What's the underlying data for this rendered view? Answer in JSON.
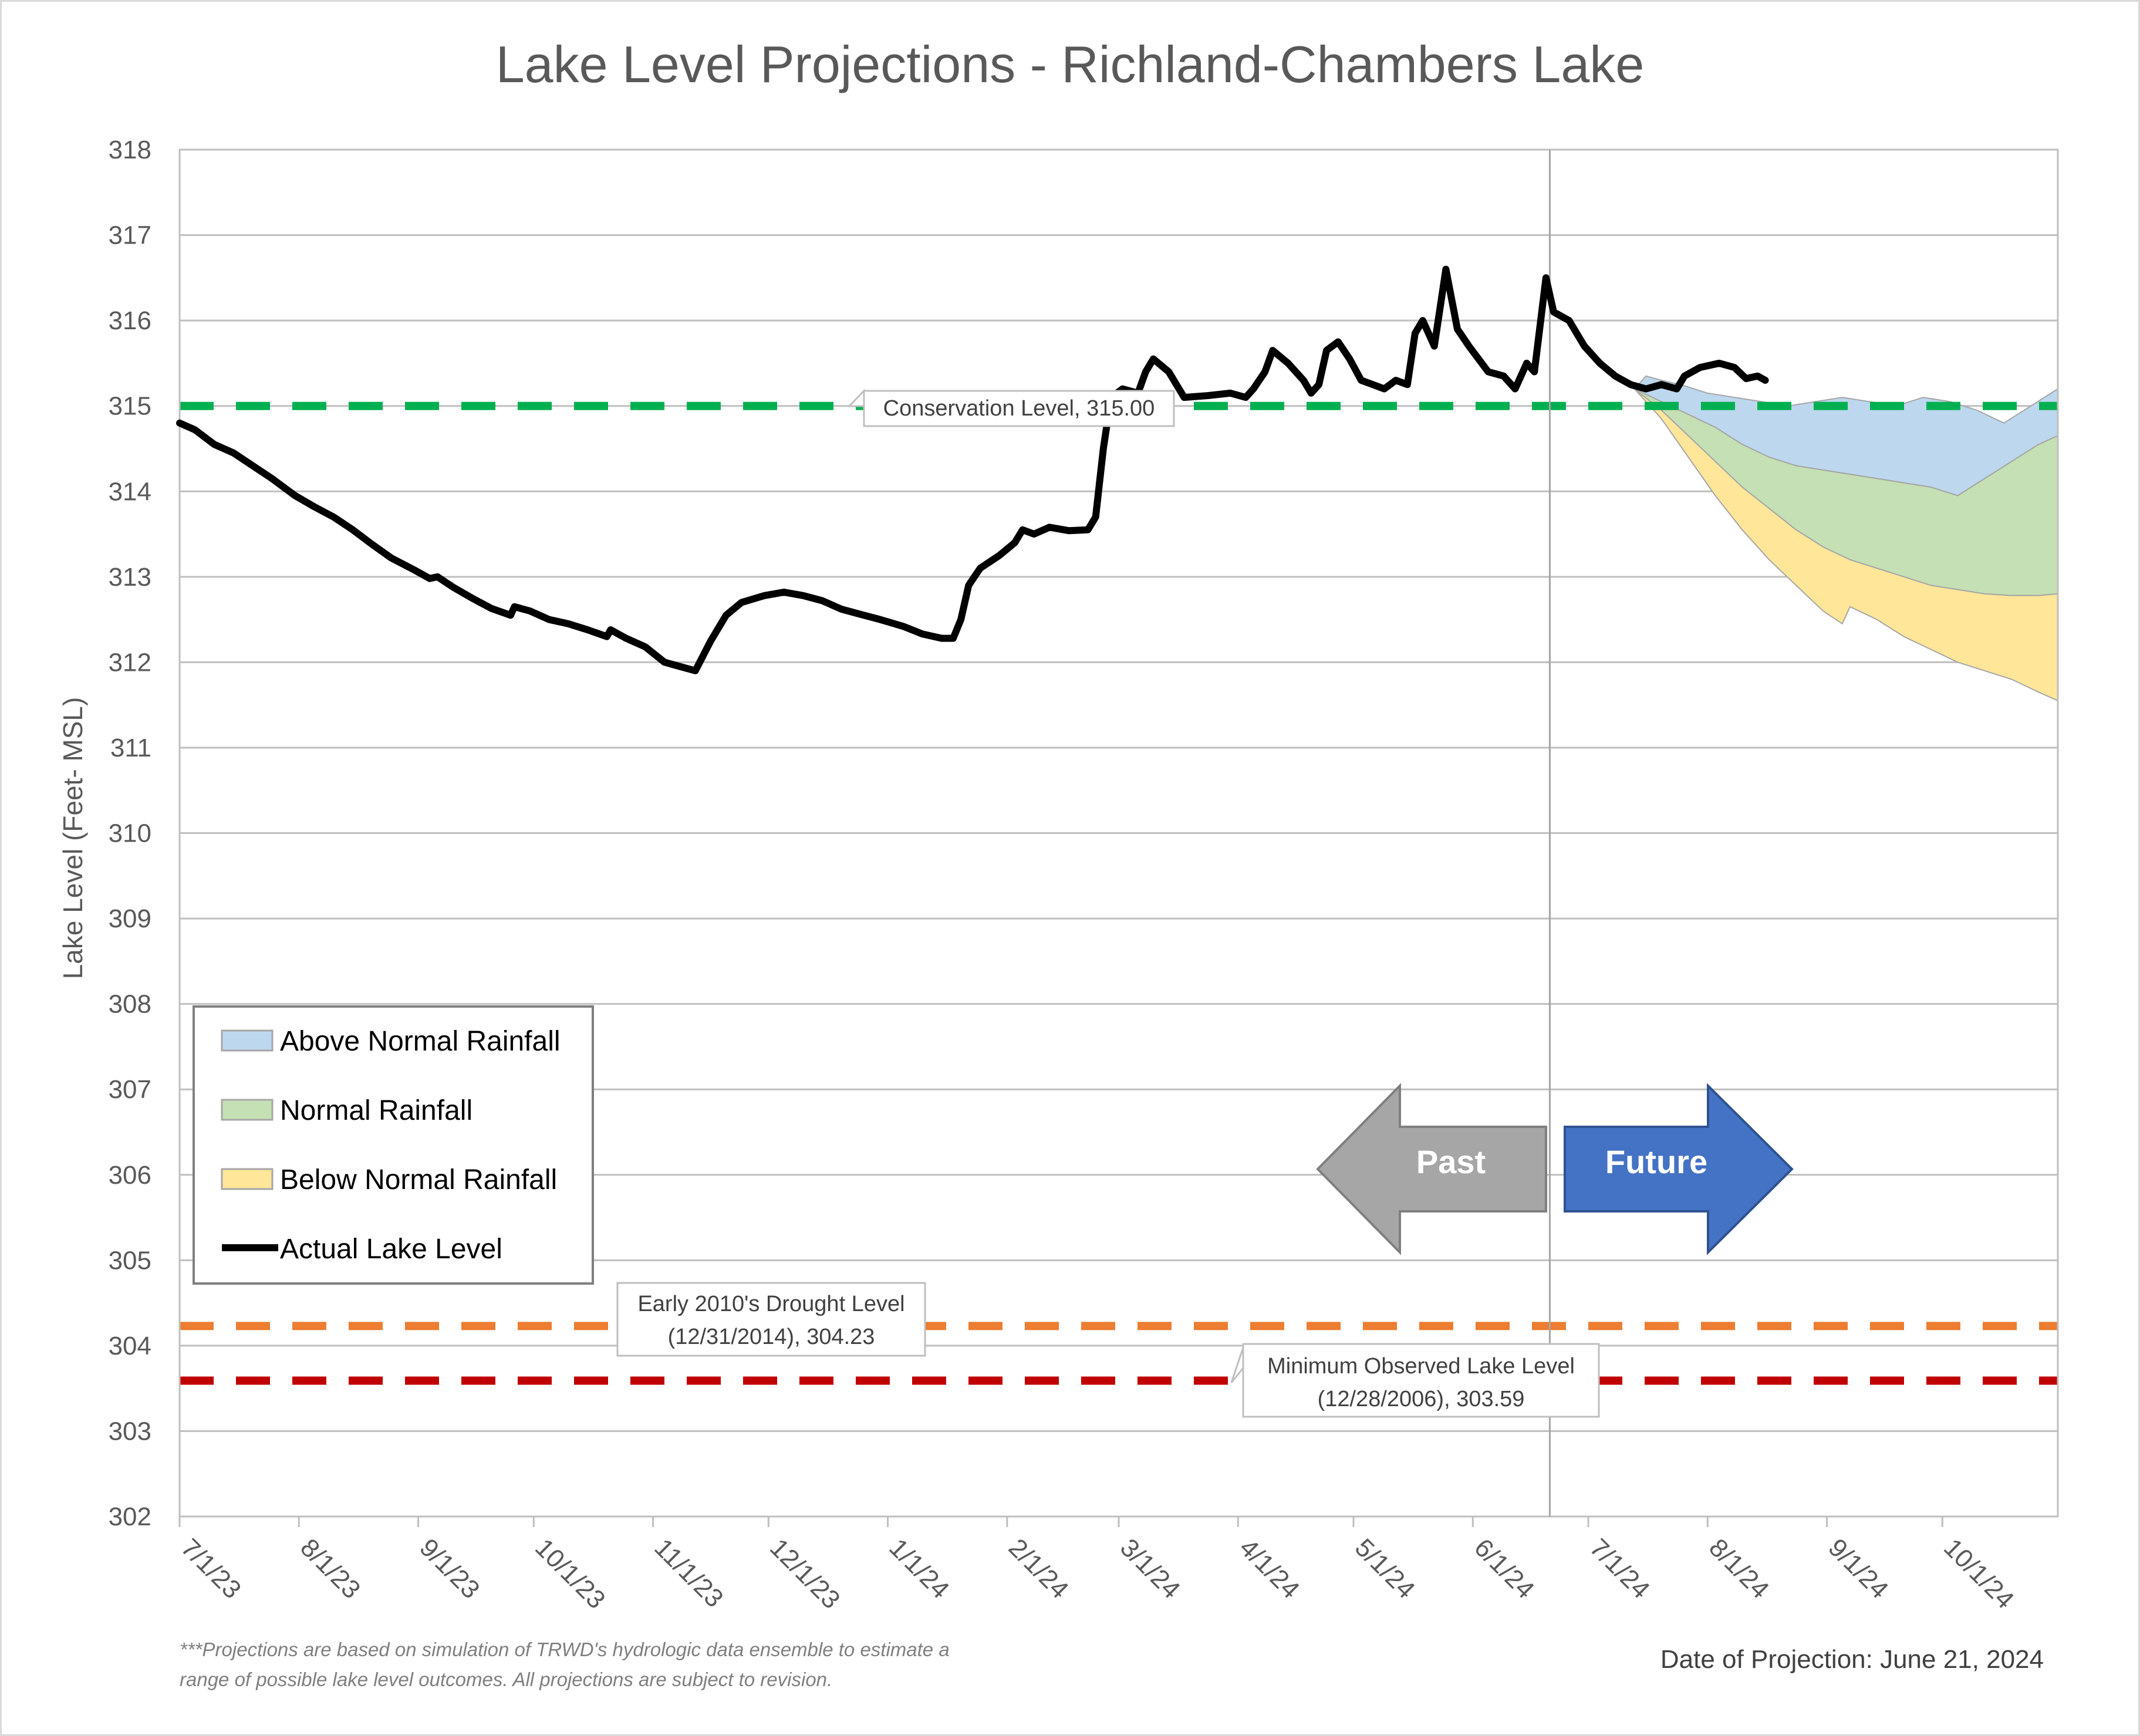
{
  "chart_data": {
    "type": "area",
    "title": "Lake Level Projections - Richland-Chambers Lake",
    "ylabel": "Lake Level (Feet- MSL)",
    "xlabel": "",
    "ylim": [
      302,
      318
    ],
    "yticks": [
      "302",
      "303",
      "304",
      "305",
      "306",
      "307",
      "308",
      "309",
      "310",
      "311",
      "312",
      "313",
      "314",
      "315",
      "316",
      "317",
      "318"
    ],
    "x_range": [
      "2023-07-01",
      "2024-10-31"
    ],
    "x_ticks": [
      {
        "date": "2023-07-01",
        "label": "7/1/23"
      },
      {
        "date": "2023-08-01",
        "label": "8/1/23"
      },
      {
        "date": "2023-09-01",
        "label": "9/1/23"
      },
      {
        "date": "2023-10-01",
        "label": "10/1/23"
      },
      {
        "date": "2023-11-01",
        "label": "11/1/23"
      },
      {
        "date": "2023-12-01",
        "label": "12/1/23"
      },
      {
        "date": "2024-01-01",
        "label": "1/1/24"
      },
      {
        "date": "2024-02-01",
        "label": "2/1/24"
      },
      {
        "date": "2024-03-01",
        "label": "3/1/24"
      },
      {
        "date": "2024-04-01",
        "label": "4/1/24"
      },
      {
        "date": "2024-05-01",
        "label": "5/1/24"
      },
      {
        "date": "2024-06-01",
        "label": "6/1/24"
      },
      {
        "date": "2024-07-01",
        "label": "7/1/24"
      },
      {
        "date": "2024-08-01",
        "label": "8/1/24"
      },
      {
        "date": "2024-09-01",
        "label": "9/1/24"
      },
      {
        "date": "2024-10-01",
        "label": "10/1/24"
      }
    ],
    "grid": "horizontal",
    "projection_date": "2024-06-21",
    "reference_lines": [
      {
        "name": "Conservation Level",
        "value": 315.0,
        "color": "#00b050",
        "label": "Conservation Level, 315.00"
      },
      {
        "name": "Early 2010's Drought Level",
        "value": 304.23,
        "color": "#ed7d31",
        "label_line1": "Early 2010's Drought Level",
        "label_line2": "(12/31/2014), 304.23"
      },
      {
        "name": "Minimum Observed Lake Level",
        "value": 303.59,
        "color": "#c00000",
        "label_line1": "Minimum Observed Lake Level",
        "label_line2": "(12/28/2006), 303.59"
      }
    ],
    "series": [
      {
        "name": "Actual Lake Level",
        "color": "#000000",
        "points": [
          [
            "2023-07-01",
            314.8
          ],
          [
            "2023-07-05",
            314.72
          ],
          [
            "2023-07-10",
            314.55
          ],
          [
            "2023-07-15",
            314.45
          ],
          [
            "2023-07-20",
            314.3
          ],
          [
            "2023-07-25",
            314.15
          ],
          [
            "2023-07-31",
            313.95
          ],
          [
            "2023-08-05",
            313.82
          ],
          [
            "2023-08-10",
            313.7
          ],
          [
            "2023-08-15",
            313.55
          ],
          [
            "2023-08-20",
            313.38
          ],
          [
            "2023-08-25",
            313.22
          ],
          [
            "2023-08-31",
            313.08
          ],
          [
            "2023-09-04",
            312.98
          ],
          [
            "2023-09-06",
            313.0
          ],
          [
            "2023-09-10",
            312.88
          ],
          [
            "2023-09-15",
            312.75
          ],
          [
            "2023-09-20",
            312.63
          ],
          [
            "2023-09-25",
            312.55
          ],
          [
            "2023-09-26",
            312.65
          ],
          [
            "2023-09-30",
            312.6
          ],
          [
            "2023-10-05",
            312.5
          ],
          [
            "2023-10-10",
            312.45
          ],
          [
            "2023-10-15",
            312.38
          ],
          [
            "2023-10-20",
            312.3
          ],
          [
            "2023-10-21",
            312.38
          ],
          [
            "2023-10-25",
            312.28
          ],
          [
            "2023-10-30",
            312.18
          ],
          [
            "2023-11-04",
            312.0
          ],
          [
            "2023-11-08",
            311.95
          ],
          [
            "2023-11-12",
            311.9
          ],
          [
            "2023-11-16",
            312.25
          ],
          [
            "2023-11-20",
            312.55
          ],
          [
            "2023-11-24",
            312.7
          ],
          [
            "2023-11-30",
            312.78
          ],
          [
            "2023-12-05",
            312.82
          ],
          [
            "2023-12-10",
            312.78
          ],
          [
            "2023-12-15",
            312.72
          ],
          [
            "2023-12-20",
            312.62
          ],
          [
            "2023-12-25",
            312.56
          ],
          [
            "2023-12-30",
            312.5
          ],
          [
            "2024-01-05",
            312.42
          ],
          [
            "2024-01-10",
            312.33
          ],
          [
            "2024-01-15",
            312.28
          ],
          [
            "2024-01-18",
            312.28
          ],
          [
            "2024-01-20",
            312.5
          ],
          [
            "2024-01-22",
            312.9
          ],
          [
            "2024-01-25",
            313.1
          ],
          [
            "2024-01-30",
            313.25
          ],
          [
            "2024-02-03",
            313.4
          ],
          [
            "2024-02-05",
            313.55
          ],
          [
            "2024-02-08",
            313.5
          ],
          [
            "2024-02-12",
            313.58
          ],
          [
            "2024-02-17",
            313.54
          ],
          [
            "2024-02-22",
            313.55
          ],
          [
            "2024-02-24",
            313.7
          ],
          [
            "2024-02-26",
            314.5
          ],
          [
            "2024-02-28",
            315.1
          ],
          [
            "2024-03-02",
            315.2
          ],
          [
            "2024-03-06",
            315.15
          ],
          [
            "2024-03-08",
            315.4
          ],
          [
            "2024-03-10",
            315.55
          ],
          [
            "2024-03-14",
            315.4
          ],
          [
            "2024-03-18",
            315.1
          ],
          [
            "2024-03-24",
            315.12
          ],
          [
            "2024-03-30",
            315.15
          ],
          [
            "2024-04-03",
            315.1
          ],
          [
            "2024-04-05",
            315.2
          ],
          [
            "2024-04-08",
            315.4
          ],
          [
            "2024-04-10",
            315.65
          ],
          [
            "2024-04-14",
            315.5
          ],
          [
            "2024-04-18",
            315.3
          ],
          [
            "2024-04-20",
            315.15
          ],
          [
            "2024-04-22",
            315.25
          ],
          [
            "2024-04-24",
            315.65
          ],
          [
            "2024-04-27",
            315.75
          ],
          [
            "2024-04-30",
            315.55
          ],
          [
            "2024-05-03",
            315.3
          ],
          [
            "2024-05-06",
            315.25
          ],
          [
            "2024-05-09",
            315.2
          ],
          [
            "2024-05-12",
            315.3
          ],
          [
            "2024-05-15",
            315.25
          ],
          [
            "2024-05-17",
            315.85
          ],
          [
            "2024-05-19",
            316.0
          ],
          [
            "2024-05-22",
            315.7
          ],
          [
            "2024-05-25",
            316.6
          ],
          [
            "2024-05-28",
            315.9
          ],
          [
            "2024-05-31",
            315.7
          ],
          [
            "2024-06-05",
            315.4
          ],
          [
            "2024-06-09",
            315.35
          ],
          [
            "2024-06-12",
            315.2
          ],
          [
            "2024-06-15",
            315.5
          ],
          [
            "2024-06-17",
            315.4
          ],
          [
            "2024-06-20",
            316.5
          ],
          [
            "2024-06-22",
            316.1
          ],
          [
            "2024-06-26",
            316.0
          ],
          [
            "2024-06-30",
            315.7
          ],
          [
            "2024-07-04",
            315.5
          ],
          [
            "2024-07-08",
            315.35
          ],
          [
            "2024-07-12",
            315.25
          ],
          [
            "2024-07-16",
            315.2
          ],
          [
            "2024-07-20",
            315.25
          ],
          [
            "2024-07-24",
            315.2
          ],
          [
            "2024-07-26",
            315.35
          ],
          [
            "2024-07-30",
            315.45
          ],
          [
            "2024-08-04",
            315.5
          ],
          [
            "2024-08-08",
            315.45
          ],
          [
            "2024-08-11",
            315.32
          ],
          [
            "2024-08-14",
            315.35
          ],
          [
            "2024-08-16",
            315.3
          ]
        ]
      },
      {
        "name": "Above Normal Rainfall",
        "color": "#bdd7ee",
        "upper": [
          [
            "2024-07-13",
            315.2
          ],
          [
            "2024-07-16",
            315.35
          ],
          [
            "2024-07-20",
            315.3
          ],
          [
            "2024-07-25",
            315.25
          ],
          [
            "2024-08-01",
            315.15
          ],
          [
            "2024-08-08",
            315.1
          ],
          [
            "2024-08-15",
            315.05
          ],
          [
            "2024-08-22",
            315.0
          ],
          [
            "2024-08-29",
            315.05
          ],
          [
            "2024-09-05",
            315.1
          ],
          [
            "2024-09-12",
            315.05
          ],
          [
            "2024-09-19",
            315.0
          ],
          [
            "2024-09-26",
            315.1
          ],
          [
            "2024-10-03",
            315.05
          ],
          [
            "2024-10-10",
            314.95
          ],
          [
            "2024-10-17",
            314.8
          ],
          [
            "2024-10-24",
            315.0
          ],
          [
            "2024-10-31",
            315.2
          ]
        ],
        "lower": [
          [
            "2024-07-13",
            315.2
          ],
          [
            "2024-07-20",
            315.05
          ],
          [
            "2024-07-27",
            314.9
          ],
          [
            "2024-08-03",
            314.75
          ],
          [
            "2024-08-10",
            314.55
          ],
          [
            "2024-08-17",
            314.4
          ],
          [
            "2024-08-24",
            314.3
          ],
          [
            "2024-08-31",
            314.25
          ],
          [
            "2024-09-07",
            314.2
          ],
          [
            "2024-09-14",
            314.15
          ],
          [
            "2024-09-21",
            314.1
          ],
          [
            "2024-09-28",
            314.05
          ],
          [
            "2024-10-05",
            313.95
          ],
          [
            "2024-10-12",
            314.15
          ],
          [
            "2024-10-19",
            314.35
          ],
          [
            "2024-10-26",
            314.55
          ],
          [
            "2024-10-31",
            314.65
          ]
        ]
      },
      {
        "name": "Normal Rainfall",
        "color": "#c5e0b4",
        "upper": [
          [
            "2024-07-13",
            315.2
          ],
          [
            "2024-07-20",
            315.05
          ],
          [
            "2024-07-27",
            314.9
          ],
          [
            "2024-08-03",
            314.75
          ],
          [
            "2024-08-10",
            314.55
          ],
          [
            "2024-08-17",
            314.4
          ],
          [
            "2024-08-24",
            314.3
          ],
          [
            "2024-08-31",
            314.25
          ],
          [
            "2024-09-07",
            314.2
          ],
          [
            "2024-09-14",
            314.15
          ],
          [
            "2024-09-21",
            314.1
          ],
          [
            "2024-09-28",
            314.05
          ],
          [
            "2024-10-05",
            313.95
          ],
          [
            "2024-10-12",
            314.15
          ],
          [
            "2024-10-19",
            314.35
          ],
          [
            "2024-10-26",
            314.55
          ],
          [
            "2024-10-31",
            314.65
          ]
        ],
        "lower": [
          [
            "2024-07-13",
            315.2
          ],
          [
            "2024-07-20",
            314.95
          ],
          [
            "2024-07-27",
            314.65
          ],
          [
            "2024-08-03",
            314.35
          ],
          [
            "2024-08-10",
            314.05
          ],
          [
            "2024-08-17",
            313.8
          ],
          [
            "2024-08-24",
            313.55
          ],
          [
            "2024-08-31",
            313.35
          ],
          [
            "2024-09-07",
            313.2
          ],
          [
            "2024-09-14",
            313.1
          ],
          [
            "2024-09-21",
            313.0
          ],
          [
            "2024-09-28",
            312.9
          ],
          [
            "2024-10-05",
            312.85
          ],
          [
            "2024-10-12",
            312.8
          ],
          [
            "2024-10-19",
            312.78
          ],
          [
            "2024-10-26",
            312.78
          ],
          [
            "2024-10-31",
            312.8
          ]
        ]
      },
      {
        "name": "Below Normal Rainfall",
        "color": "#ffe699",
        "upper": [
          [
            "2024-07-13",
            315.2
          ],
          [
            "2024-07-20",
            314.95
          ],
          [
            "2024-07-27",
            314.65
          ],
          [
            "2024-08-03",
            314.35
          ],
          [
            "2024-08-10",
            314.05
          ],
          [
            "2024-08-17",
            313.8
          ],
          [
            "2024-08-24",
            313.55
          ],
          [
            "2024-08-31",
            313.35
          ],
          [
            "2024-09-07",
            313.2
          ],
          [
            "2024-09-14",
            313.1
          ],
          [
            "2024-09-21",
            313.0
          ],
          [
            "2024-09-28",
            312.9
          ],
          [
            "2024-10-05",
            312.85
          ],
          [
            "2024-10-12",
            312.8
          ],
          [
            "2024-10-19",
            312.78
          ],
          [
            "2024-10-26",
            312.78
          ],
          [
            "2024-10-31",
            312.8
          ]
        ],
        "lower": [
          [
            "2024-07-13",
            315.2
          ],
          [
            "2024-07-20",
            314.85
          ],
          [
            "2024-07-27",
            314.4
          ],
          [
            "2024-08-03",
            313.95
          ],
          [
            "2024-08-10",
            313.55
          ],
          [
            "2024-08-17",
            313.2
          ],
          [
            "2024-08-24",
            312.9
          ],
          [
            "2024-08-31",
            312.6
          ],
          [
            "2024-09-05",
            312.45
          ],
          [
            "2024-09-07",
            312.65
          ],
          [
            "2024-09-14",
            312.5
          ],
          [
            "2024-09-21",
            312.3
          ],
          [
            "2024-09-28",
            312.15
          ],
          [
            "2024-10-05",
            312.0
          ],
          [
            "2024-10-12",
            311.9
          ],
          [
            "2024-10-19",
            311.8
          ],
          [
            "2024-10-26",
            311.65
          ],
          [
            "2024-10-31",
            311.55
          ]
        ]
      }
    ],
    "legend": {
      "placement": "bottom-left",
      "items": [
        "Above Normal Rainfall",
        "Normal Rainfall",
        "Below Normal Rainfall",
        "Actual Lake Level"
      ]
    },
    "arrows": {
      "past_label": "Past",
      "future_label": "Future",
      "past_color": "#a6a6a6",
      "future_color": "#4472c4"
    },
    "footnote_line1": "***Projections are based on simulation of TRWD's hydrologic data ensemble to estimate a",
    "footnote_line2": "range of possible lake level outcomes.  All projections are subject to revision.",
    "projection_note": "Date of Projection: June 21, 2024"
  }
}
